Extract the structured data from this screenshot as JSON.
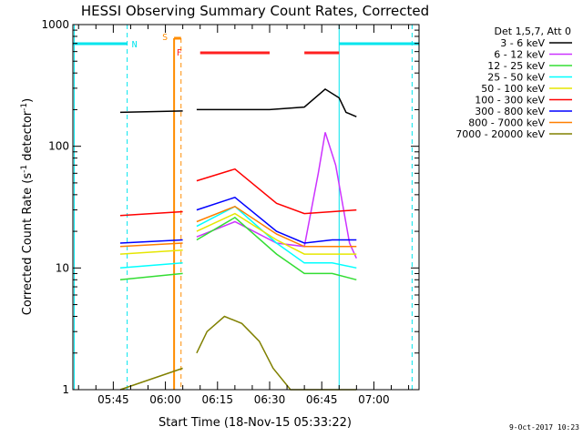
{
  "chart_data": {
    "type": "line",
    "title": "HESSI Observing Summary Count Rates, Corrected",
    "xlabel": "Start Time (18-Nov-15 05:33:22)",
    "ylabel": "Corrected Count Rate (s",
    "ylabel_sup1": "-1",
    "ylabel_mid": " detector",
    "ylabel_sup2": "-1",
    "ylabel_end": ")",
    "yscale": "log",
    "ylim": [
      1,
      1000
    ],
    "xlim": [
      "05:33:22",
      "07:13:00"
    ],
    "x_ticks": [
      "05:45",
      "06:00",
      "06:15",
      "06:30",
      "06:45",
      "07:00"
    ],
    "y_ticks": [
      "1",
      "10",
      "100",
      "1000"
    ],
    "grid": false,
    "legend_title": "Det 1,5,7, Att 0",
    "legend_position": "top-right",
    "footer": "9-Oct-2017 10:23",
    "markers": [
      {
        "label": "N",
        "color": "#00e5ee"
      },
      {
        "label": "S",
        "color": "#ff8c00"
      },
      {
        "label": "F",
        "color": "#ff2020"
      }
    ],
    "series": [
      {
        "name": "3 - 6 keV",
        "color": "#000000",
        "x": [
          "05:47",
          "06:05",
          "06:09",
          "06:30",
          "06:40",
          "06:46",
          "06:50",
          "06:52",
          "06:55"
        ],
        "y": [
          190,
          195,
          200,
          200,
          210,
          295,
          250,
          190,
          175
        ]
      },
      {
        "name": "6 - 12 keV",
        "color": "#cc33ff",
        "x": [
          "06:09",
          "06:20",
          "06:32",
          "06:40",
          "06:44",
          "06:46",
          "06:49",
          "06:53",
          "06:55"
        ],
        "y": [
          18,
          24,
          16,
          15,
          60,
          130,
          70,
          16,
          12
        ]
      },
      {
        "name": "12 - 25 keV",
        "color": "#33dd33",
        "x": [
          "05:47",
          "06:05",
          "06:09",
          "06:20",
          "06:32",
          "06:40",
          "06:48",
          "06:55"
        ],
        "y": [
          8,
          9,
          17,
          26,
          13,
          9,
          9,
          8
        ]
      },
      {
        "name": "25 - 50 keV",
        "color": "#00ffff",
        "x": [
          "05:47",
          "06:05",
          "06:09",
          "06:20",
          "06:32",
          "06:40",
          "06:48",
          "06:55"
        ],
        "y": [
          10,
          11,
          22,
          32,
          16,
          11,
          11,
          10
        ]
      },
      {
        "name": "50 - 100 keV",
        "color": "#e6e600",
        "x": [
          "05:47",
          "06:05",
          "06:09",
          "06:20",
          "06:32",
          "06:40",
          "06:48",
          "06:55"
        ],
        "y": [
          13,
          14,
          20,
          28,
          17,
          13,
          13,
          13
        ]
      },
      {
        "name": "100 - 300 keV",
        "color": "#ff0000",
        "x": [
          "05:47",
          "06:05",
          "06:09",
          "06:20",
          "06:32",
          "06:40",
          "06:48",
          "06:55"
        ],
        "y": [
          27,
          29,
          52,
          65,
          34,
          28,
          29,
          30
        ]
      },
      {
        "name": "300 - 800 keV",
        "color": "#0000ff",
        "x": [
          "05:47",
          "06:05",
          "06:09",
          "06:20",
          "06:32",
          "06:40",
          "06:48",
          "06:55"
        ],
        "y": [
          16,
          17,
          30,
          38,
          20,
          16,
          17,
          17
        ]
      },
      {
        "name": "800 - 7000 keV",
        "color": "#ff7f00",
        "x": [
          "05:47",
          "06:05",
          "06:09",
          "06:20",
          "06:32",
          "06:40",
          "06:48",
          "06:55"
        ],
        "y": [
          15,
          16,
          24,
          32,
          19,
          15,
          15,
          15
        ]
      },
      {
        "name": "7000 - 20000 keV",
        "color": "#808000",
        "x": [
          "05:47",
          "06:05",
          "06:09",
          "06:12",
          "06:17",
          "06:22",
          "06:27",
          "06:31",
          "06:36",
          "06:55"
        ],
        "y": [
          1,
          1.5,
          2,
          3,
          4,
          3.5,
          2.5,
          1.5,
          1,
          1
        ]
      }
    ]
  }
}
